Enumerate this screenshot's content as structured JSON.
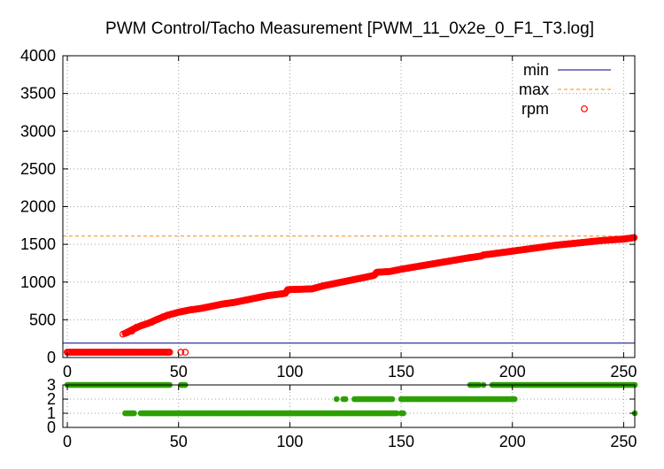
{
  "title": "PWM Control/Tacho Measurement [PWM_11_0x2e_0_F1_T3.log]",
  "colors": {
    "min": "#000080",
    "max": "#ff8c00",
    "rpm": "#ff0000",
    "status": "#2ca000",
    "grid": "#a0a0a0"
  },
  "chart_data": [
    {
      "type": "scatter",
      "xlim": [
        -2,
        255
      ],
      "ylim": [
        0,
        4000
      ],
      "xticks": [
        0,
        50,
        100,
        150,
        200,
        250
      ],
      "yticks": [
        0,
        500,
        1000,
        1500,
        2000,
        2500,
        3000,
        3500,
        4000
      ],
      "grid": true,
      "legend_position": "top-right",
      "legend": [
        "min",
        "max",
        "rpm"
      ],
      "min": 190,
      "max": 1610,
      "series": [
        {
          "name": "rpm",
          "low_points": [
            [
              0,
              70
            ],
            [
              5,
              70
            ],
            [
              10,
              70
            ],
            [
              15,
              70
            ],
            [
              20,
              70
            ],
            [
              25,
              70
            ],
            [
              30,
              70
            ],
            [
              35,
              70
            ],
            [
              40,
              70
            ],
            [
              45,
              70
            ],
            [
              51,
              70
            ],
            [
              53,
              70
            ]
          ],
          "curve": [
            [
              26,
              320
            ],
            [
              30,
              380
            ],
            [
              33,
              420
            ],
            [
              37,
              460
            ],
            [
              40,
              500
            ],
            [
              45,
              560
            ],
            [
              50,
              600
            ],
            [
              55,
              630
            ],
            [
              60,
              650
            ],
            [
              65,
              680
            ],
            [
              70,
              710
            ],
            [
              75,
              730
            ],
            [
              80,
              760
            ],
            [
              85,
              790
            ],
            [
              90,
              820
            ],
            [
              98,
              850
            ],
            [
              99,
              900
            ],
            [
              105,
              905
            ],
            [
              110,
              910
            ],
            [
              115,
              950
            ],
            [
              120,
              980
            ],
            [
              125,
              1010
            ],
            [
              130,
              1040
            ],
            [
              135,
              1070
            ],
            [
              138,
              1090
            ],
            [
              139,
              1130
            ],
            [
              145,
              1140
            ],
            [
              150,
              1170
            ],
            [
              160,
              1220
            ],
            [
              170,
              1270
            ],
            [
              180,
              1320
            ],
            [
              186,
              1345
            ],
            [
              187,
              1360
            ],
            [
              190,
              1370
            ],
            [
              200,
              1410
            ],
            [
              210,
              1450
            ],
            [
              220,
              1490
            ],
            [
              230,
              1520
            ],
            [
              240,
              1550
            ],
            [
              250,
              1570
            ],
            [
              255,
              1590
            ]
          ],
          "scattered_curve": [
            [
              25,
              310
            ],
            [
              27,
              330
            ],
            [
              29,
              350
            ],
            [
              31,
              400
            ],
            [
              34,
              430
            ],
            [
              36,
              450
            ],
            [
              38,
              470
            ],
            [
              41,
              510
            ],
            [
              43,
              540
            ]
          ]
        }
      ]
    },
    {
      "type": "scatter",
      "xlim": [
        -2,
        255
      ],
      "ylim": [
        0,
        3
      ],
      "xticks": [
        0,
        50,
        100,
        150,
        200,
        250
      ],
      "yticks": [
        0,
        1,
        2,
        3
      ],
      "grid": true,
      "series": [
        {
          "name": "",
          "segments": [
            {
              "y": 3,
              "from": 0,
              "to": 46
            },
            {
              "y": 3,
              "from": 51,
              "to": 53
            },
            {
              "y": 1,
              "from": 26,
              "to": 30
            },
            {
              "y": 1,
              "from": 33,
              "to": 148
            },
            {
              "y": 1,
              "from": 150,
              "to": 151
            },
            {
              "y": 2,
              "from": 121,
              "to": 121
            },
            {
              "y": 2,
              "from": 124,
              "to": 125
            },
            {
              "y": 2,
              "from": 129,
              "to": 146
            },
            {
              "y": 2,
              "from": 150,
              "to": 201
            },
            {
              "y": 3,
              "from": 181,
              "to": 185
            },
            {
              "y": 3,
              "from": 187,
              "to": 187
            },
            {
              "y": 3,
              "from": 191,
              "to": 255
            },
            {
              "y": 1,
              "from": 255,
              "to": 255
            }
          ]
        }
      ]
    }
  ]
}
